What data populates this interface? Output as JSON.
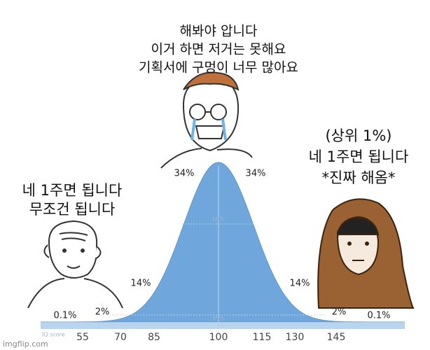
{
  "top_caption": [
    "해봐야 압니다",
    "이거 하면 저거는 못해요",
    "기획서에 구멍이 너무 많아요"
  ],
  "right_caption": [
    "(상위 1%)",
    "네 1주면 됩니다",
    "*진짜 해옴*"
  ],
  "left_caption": [
    "네 1주면 됩니다",
    "무조건 됩니다"
  ],
  "percent_labels": [
    "34%",
    "34%",
    "14%",
    "14%",
    "2%",
    "2%",
    "0.1%",
    "0.1%"
  ],
  "range_labels": [
    "68%",
    "95%"
  ],
  "axis_title": "IQ score",
  "axis_labels": [
    "55",
    "70",
    "85",
    "100",
    "115",
    "130",
    "145"
  ],
  "watermark": "imgflip.com"
}
